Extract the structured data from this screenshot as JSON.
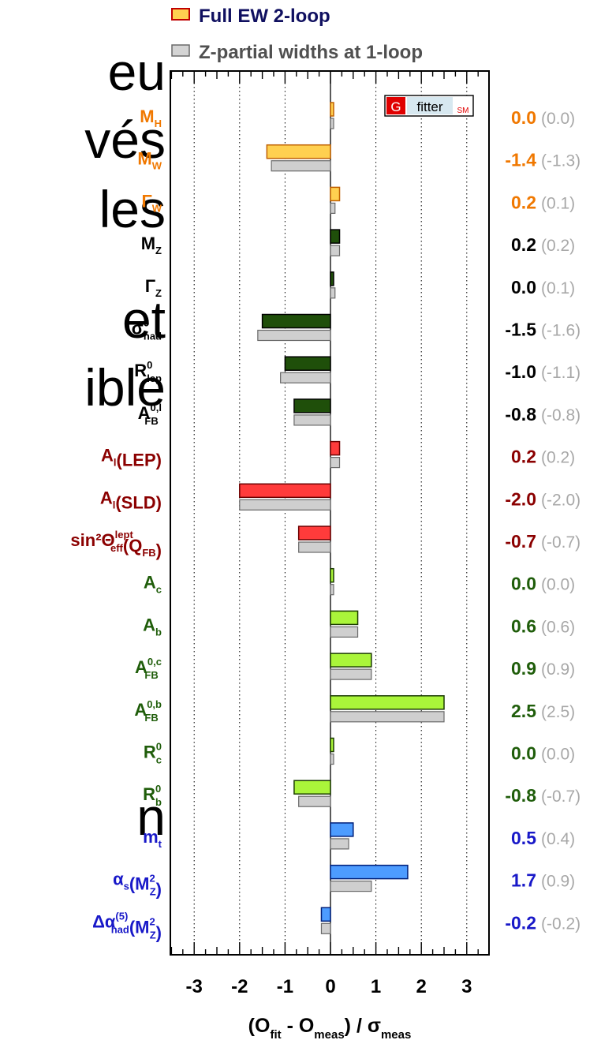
{
  "background_text": [
    "eu",
    "vés",
    "les",
    "et",
    "ible",
    "n"
  ],
  "chart_data": {
    "type": "bar",
    "orientation": "horizontal",
    "xlabel": "(O_fit - O_meas) / σ_meas",
    "xlim": [
      -3.5,
      3.5
    ],
    "xticks": [
      "-3",
      "-2",
      "-1",
      "0",
      "1",
      "2",
      "3"
    ],
    "grid": "dotted vertical lines at integer ticks",
    "legend_position": "top",
    "series": [
      {
        "name": "Full EW 2-loop",
        "values": [
          0.0,
          -1.4,
          0.2,
          0.2,
          0.0,
          -1.5,
          -1.0,
          -0.8,
          0.2,
          -2.0,
          -0.7,
          0.0,
          0.6,
          0.9,
          2.5,
          0.0,
          -0.8,
          0.5,
          1.7,
          -0.2
        ]
      },
      {
        "name": "Z-partial widths at 1-loop",
        "values": [
          0.0,
          -1.3,
          0.1,
          0.2,
          0.1,
          -1.6,
          -1.1,
          -0.8,
          0.2,
          -2.0,
          -0.7,
          0.0,
          0.6,
          0.9,
          2.5,
          0.0,
          -0.7,
          0.4,
          0.9,
          -0.2
        ]
      }
    ],
    "observables": [
      {
        "main": "M",
        "sub": "H",
        "group": "orange",
        "val": "0.0",
        "alt": "(0.0)"
      },
      {
        "main": "M",
        "sub": "W",
        "group": "orange",
        "val": "-1.4",
        "alt": "(-1.3)"
      },
      {
        "main": "Γ",
        "sub": "W",
        "group": "orange",
        "val": "0.2",
        "alt": "(0.1)"
      },
      {
        "main": "M",
        "sub": "Z",
        "group": "black",
        "val": "0.2",
        "alt": "(0.2)"
      },
      {
        "main": "Γ",
        "sub": "Z",
        "group": "black",
        "val": "0.0",
        "alt": "(0.1)"
      },
      {
        "main": "σ",
        "sup": "0",
        "sub": "had",
        "group": "black",
        "val": "-1.5",
        "alt": "(-1.6)"
      },
      {
        "main": "R",
        "sup": "0",
        "sub": "lep",
        "group": "black",
        "val": "-1.0",
        "alt": "(-1.1)"
      },
      {
        "main": "A",
        "sup": "0,l",
        "sub": "FB",
        "group": "black",
        "val": "-0.8",
        "alt": "(-0.8)"
      },
      {
        "main": "A",
        "sub": "l",
        "tail": "(LEP)",
        "group": "red",
        "val": "0.2",
        "alt": "(0.2)"
      },
      {
        "main": "A",
        "sub": "l",
        "tail": "(SLD)",
        "group": "red",
        "val": "-2.0",
        "alt": "(-2.0)"
      },
      {
        "main": "sin²Θ",
        "sup": "lept",
        "sub": "eff",
        "tail": "(Q",
        "tailsub": "FB",
        "tailend": ")",
        "group": "red",
        "val": "-0.7",
        "alt": "(-0.7)"
      },
      {
        "main": "A",
        "sub": "c",
        "group": "green",
        "val": "0.0",
        "alt": "(0.0)"
      },
      {
        "main": "A",
        "sub": "b",
        "group": "green",
        "val": "0.6",
        "alt": "(0.6)"
      },
      {
        "main": "A",
        "sup": "0,c",
        "sub": "FB",
        "group": "green",
        "val": "0.9",
        "alt": "(0.9)"
      },
      {
        "main": "A",
        "sup": "0,b",
        "sub": "FB",
        "group": "green",
        "val": "2.5",
        "alt": "(2.5)"
      },
      {
        "main": "R",
        "sup": "0",
        "sub": "c",
        "group": "green",
        "val": "0.0",
        "alt": "(0.0)"
      },
      {
        "main": "R",
        "sup": "0",
        "sub": "b",
        "group": "green",
        "val": "-0.8",
        "alt": "(-0.7)"
      },
      {
        "main": "m",
        "sub": "t",
        "group": "blue",
        "val": "0.5",
        "alt": "(0.4)"
      },
      {
        "main": "α",
        "sub": "s",
        "tail": "(M",
        "tailsup": "2",
        "tailsub2": "Z",
        "tailend": ")",
        "group": "blue",
        "val": "1.7",
        "alt": "(0.9)"
      },
      {
        "main": "Δα",
        "sup": "(5)",
        "sub": "had",
        "tail": "(M",
        "tailsup": "2",
        "tailsub2": "Z",
        "tailend": ")",
        "group": "blue",
        "val": "-0.2",
        "alt": "(-0.2)"
      }
    ],
    "group_styles": {
      "orange": {
        "label": "#f07800",
        "num": "#f07800",
        "bar": "#ffd050",
        "barEdge": "#c06000"
      },
      "black": {
        "label": "#000000",
        "num": "#000000",
        "bar": "#1f4f0a",
        "barEdge": "#000000"
      },
      "red": {
        "label": "#8b0000",
        "num": "#8b0000",
        "bar": "#ff3b3b",
        "barEdge": "#6b0000"
      },
      "green": {
        "label": "#1f5d0a",
        "num": "#1f5d0a",
        "bar": "#aaf53a",
        "barEdge": "#1a3a00"
      },
      "blue": {
        "label": "#1818c8",
        "num": "#1818c8",
        "bar": "#4d9cff",
        "barEdge": "#00207a"
      }
    },
    "alt_color": "#a8a8a8",
    "second_series_color": "#cfcfcf",
    "logo": {
      "letter": "G",
      "word": "fitter",
      "tag": "SM"
    }
  }
}
